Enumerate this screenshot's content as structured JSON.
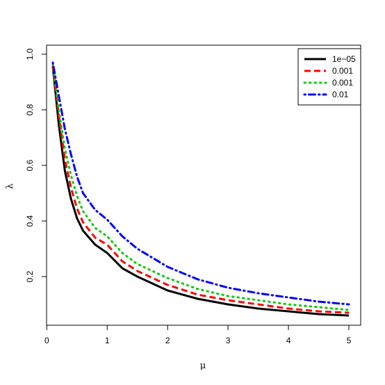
{
  "chart_data": {
    "type": "line",
    "title": "",
    "xlabel": "μ",
    "ylabel": "λ",
    "xlim": [
      0.1,
      5.0
    ],
    "ylim": [
      0.06,
      1.0
    ],
    "xticks": [
      0,
      1,
      2,
      3,
      4,
      5
    ],
    "yticks": [
      0.2,
      0.4,
      0.6,
      0.8,
      1.0
    ],
    "ytick_labels": [
      "0.2",
      "0.4",
      "0.6",
      "0.8",
      "1.0"
    ],
    "grid": false,
    "legend_position": "top-right",
    "series": [
      {
        "name": "1e−05",
        "color": "#000000",
        "dash": "solid",
        "x": [
          0.1,
          0.2,
          0.3,
          0.4,
          0.5,
          0.6,
          0.8,
          1.0,
          1.25,
          1.5,
          2.0,
          2.5,
          3.0,
          3.5,
          4.0,
          4.5,
          5.0
        ],
        "y": [
          0.955,
          0.745,
          0.58,
          0.48,
          0.41,
          0.365,
          0.315,
          0.285,
          0.23,
          0.2,
          0.15,
          0.12,
          0.1,
          0.085,
          0.075,
          0.065,
          0.06
        ]
      },
      {
        "name": "0.001",
        "color": "#ff0000",
        "dash": "dashed",
        "x": [
          0.1,
          0.2,
          0.3,
          0.4,
          0.5,
          0.6,
          0.8,
          1.0,
          1.25,
          1.5,
          2.0,
          2.5,
          3.0,
          3.5,
          4.0,
          4.5,
          5.0
        ],
        "y": [
          0.96,
          0.78,
          0.62,
          0.52,
          0.445,
          0.395,
          0.34,
          0.315,
          0.255,
          0.22,
          0.17,
          0.135,
          0.115,
          0.1,
          0.085,
          0.075,
          0.07
        ]
      },
      {
        "name": "0.001",
        "color": "#00cd00",
        "dash": "dotted",
        "x": [
          0.1,
          0.2,
          0.3,
          0.4,
          0.5,
          0.6,
          0.8,
          1.0,
          1.25,
          1.5,
          2.0,
          2.5,
          3.0,
          3.5,
          4.0,
          4.5,
          5.0
        ],
        "y": [
          0.965,
          0.8,
          0.66,
          0.565,
          0.49,
          0.435,
          0.375,
          0.345,
          0.285,
          0.245,
          0.195,
          0.155,
          0.13,
          0.115,
          0.1,
          0.09,
          0.08
        ]
      },
      {
        "name": "0.01",
        "color": "#0000ff",
        "dash": "dotdash",
        "x": [
          0.1,
          0.2,
          0.3,
          0.4,
          0.5,
          0.6,
          0.8,
          1.0,
          1.25,
          1.5,
          2.0,
          2.5,
          3.0,
          3.5,
          4.0,
          4.5,
          5.0
        ],
        "y": [
          0.97,
          0.85,
          0.73,
          0.64,
          0.56,
          0.5,
          0.44,
          0.405,
          0.345,
          0.3,
          0.235,
          0.19,
          0.16,
          0.14,
          0.125,
          0.11,
          0.1
        ]
      }
    ]
  }
}
